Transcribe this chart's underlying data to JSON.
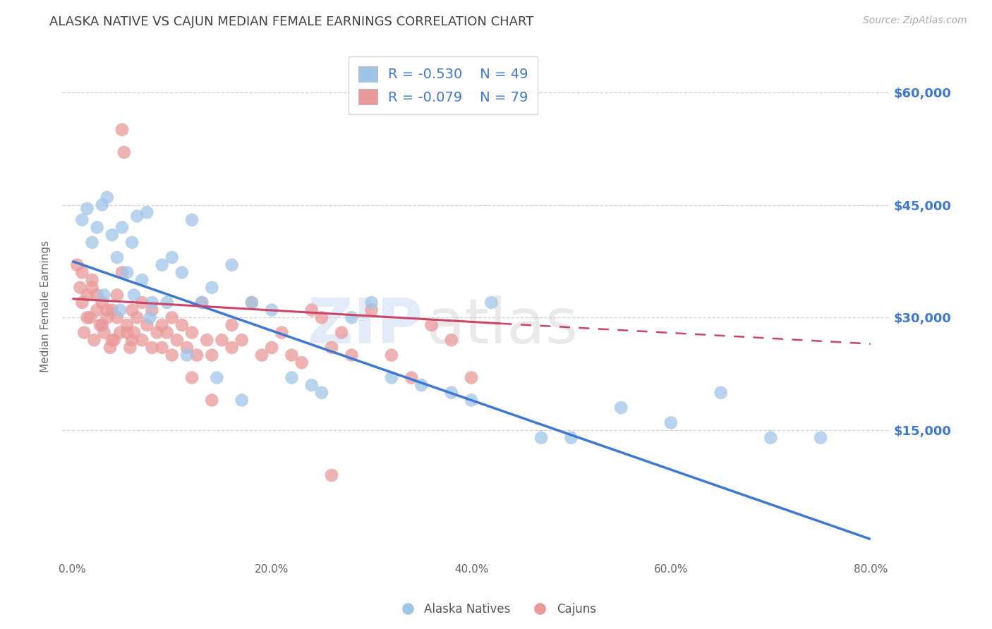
{
  "title": "ALASKA NATIVE VS CAJUN MEDIAN FEMALE EARNINGS CORRELATION CHART",
  "source": "Source: ZipAtlas.com",
  "ylabel": "Median Female Earnings",
  "xlabel_ticks": [
    "0.0%",
    "20.0%",
    "40.0%",
    "60.0%",
    "80.0%"
  ],
  "xlabel_vals": [
    0.0,
    20.0,
    40.0,
    60.0,
    80.0
  ],
  "ylabel_ticks": [
    "$15,000",
    "$30,000",
    "$45,000",
    "$60,000"
  ],
  "ylabel_vals": [
    15000,
    30000,
    45000,
    60000
  ],
  "ylim": [
    -2000,
    65000
  ],
  "xlim": [
    -1.0,
    82.0
  ],
  "blue_R": -0.53,
  "blue_N": 49,
  "pink_R": -0.079,
  "pink_N": 79,
  "legend_label_blue": "Alaska Natives",
  "legend_label_pink": "Cajuns",
  "blue_color": "#9fc5e8",
  "pink_color": "#ea9999",
  "blue_line_color": "#3c78d8",
  "pink_line_color": "#cc4466",
  "watermark_zip": "ZIP",
  "watermark_atlas": "atlas",
  "background_color": "#ffffff",
  "grid_color": "#cccccc",
  "title_color": "#404040",
  "right_tick_color": "#3c78d8",
  "legend_text_color": "#3c78d8",
  "blue_line_x0": 0,
  "blue_line_y0": 37500,
  "blue_line_x1": 80,
  "blue_line_y1": 500,
  "pink_solid_x0": 0,
  "pink_solid_y0": 32500,
  "pink_solid_x1": 43,
  "pink_solid_y1": 29200,
  "pink_dash_x0": 43,
  "pink_dash_y0": 29200,
  "pink_dash_x1": 80,
  "pink_dash_y1": 26500,
  "blue_x": [
    1.0,
    1.5,
    2.0,
    2.5,
    3.0,
    3.5,
    4.0,
    4.5,
    5.0,
    5.5,
    6.0,
    6.5,
    7.0,
    7.5,
    8.0,
    9.0,
    10.0,
    11.0,
    12.0,
    13.0,
    14.0,
    16.0,
    18.0,
    20.0,
    22.0,
    25.0,
    28.0,
    30.0,
    32.0,
    35.0,
    38.0,
    42.0,
    47.0,
    50.0,
    55.0,
    60.0,
    65.0,
    70.0,
    75.0,
    3.2,
    4.8,
    6.2,
    7.8,
    9.5,
    11.5,
    14.5,
    17.0,
    24.0,
    40.0
  ],
  "blue_y": [
    43000,
    44500,
    40000,
    42000,
    45000,
    46000,
    41000,
    38000,
    42000,
    36000,
    40000,
    43500,
    35000,
    44000,
    32000,
    37000,
    38000,
    36000,
    43000,
    32000,
    34000,
    37000,
    32000,
    31000,
    22000,
    20000,
    30000,
    32000,
    22000,
    21000,
    20000,
    32000,
    14000,
    14000,
    18000,
    16000,
    20000,
    14000,
    14000,
    33000,
    31000,
    33000,
    30000,
    32000,
    25000,
    22000,
    19000,
    21000,
    19000
  ],
  "pink_x": [
    0.5,
    0.8,
    1.0,
    1.2,
    1.5,
    1.8,
    2.0,
    2.2,
    2.5,
    2.8,
    3.0,
    3.2,
    3.5,
    3.8,
    4.0,
    4.2,
    4.5,
    4.8,
    5.0,
    5.2,
    5.5,
    5.8,
    6.0,
    6.2,
    6.5,
    7.0,
    7.5,
    8.0,
    8.5,
    9.0,
    9.5,
    10.0,
    10.5,
    11.0,
    11.5,
    12.0,
    12.5,
    13.0,
    13.5,
    14.0,
    15.0,
    16.0,
    17.0,
    18.0,
    19.0,
    20.0,
    21.0,
    22.0,
    23.0,
    24.0,
    25.0,
    26.0,
    27.0,
    28.0,
    30.0,
    32.0,
    34.0,
    36.0,
    38.0,
    40.0,
    1.0,
    1.5,
    2.0,
    2.5,
    3.0,
    3.5,
    4.0,
    4.5,
    5.0,
    5.5,
    6.0,
    7.0,
    8.0,
    9.0,
    10.0,
    12.0,
    14.0,
    16.0,
    26.0
  ],
  "pink_y": [
    37000,
    34000,
    32000,
    28000,
    33000,
    30000,
    35000,
    27000,
    31000,
    29000,
    32000,
    28000,
    30000,
    26000,
    31000,
    27000,
    33000,
    28000,
    55000,
    52000,
    29000,
    26000,
    31000,
    28000,
    30000,
    27000,
    29000,
    31000,
    28000,
    26000,
    28000,
    30000,
    27000,
    29000,
    26000,
    28000,
    25000,
    32000,
    27000,
    25000,
    27000,
    29000,
    27000,
    32000,
    25000,
    26000,
    28000,
    25000,
    24000,
    31000,
    30000,
    26000,
    28000,
    25000,
    31000,
    25000,
    22000,
    29000,
    27000,
    22000,
    36000,
    30000,
    34000,
    33000,
    29000,
    31000,
    27000,
    30000,
    36000,
    28000,
    27000,
    32000,
    26000,
    29000,
    25000,
    22000,
    19000,
    26000,
    9000
  ]
}
